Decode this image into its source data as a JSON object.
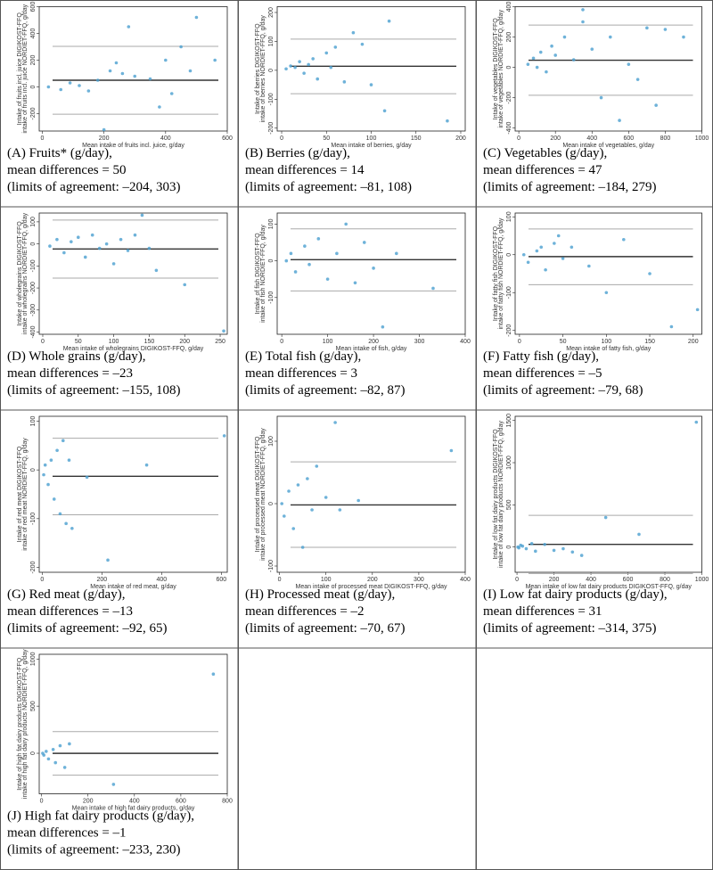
{
  "chart_data": [
    {
      "type": "scatter",
      "caption": [
        "(A) Fruits* (g/day),",
        "mean differences = 50",
        "(limits of agreement: –204, 303)"
      ],
      "x_label": "Mean intake of fruits incl. juice, g/day",
      "y_label": [
        "Intake of fruits incl. juice DIGIKOST-FFQ",
        "intake of fruits incl. juice NORDIET-FFQ, g/day"
      ],
      "xlim": [
        -10,
        600
      ],
      "ylim": [
        -330,
        600
      ],
      "xticks": [
        0,
        200,
        400,
        600
      ],
      "yticks": [
        -200,
        0,
        200,
        400,
        600
      ],
      "x": [
        20,
        60,
        90,
        120,
        150,
        180,
        200,
        220,
        240,
        260,
        280,
        300,
        350,
        380,
        400,
        420,
        450,
        480,
        500,
        560
      ],
      "y": [
        0,
        -20,
        30,
        10,
        -30,
        50,
        -320,
        120,
        180,
        100,
        450,
        80,
        60,
        -150,
        200,
        -50,
        300,
        120,
        520,
        200
      ],
      "mean": 50,
      "limits": [
        -204,
        303
      ],
      "color": "#4a9fd0"
    },
    {
      "type": "scatter",
      "caption": [
        "(B) Berries (g/day),",
        "mean differences = 14",
        "(limits of agreement: –81, 108)"
      ],
      "x_label": "Mean intake of berries, g/day",
      "y_label": [
        "Intake of berries DIGIKOST-FFQ",
        "intake of berries NORDIET-FFQ, g/day"
      ],
      "xlim": [
        -5,
        205
      ],
      "ylim": [
        -210,
        220
      ],
      "xticks": [
        0,
        50,
        100,
        150,
        200
      ],
      "yticks": [
        -200,
        -100,
        0,
        100,
        200
      ],
      "x": [
        5,
        10,
        15,
        20,
        25,
        30,
        35,
        40,
        50,
        55,
        60,
        70,
        80,
        90,
        100,
        115,
        120,
        185
      ],
      "y": [
        5,
        15,
        10,
        30,
        -10,
        20,
        40,
        -30,
        60,
        10,
        80,
        -40,
        130,
        90,
        -50,
        -140,
        170,
        -175
      ],
      "mean": 14,
      "limits": [
        -81,
        108
      ],
      "color": "#4a9fd0"
    },
    {
      "type": "scatter",
      "caption": [
        "(C) Vegetables (g/day),",
        "mean differences = 47",
        "(limits of agreement: –184, 279)"
      ],
      "x_label": "Mean intake of vegetables, g/day",
      "y_label": [
        "Intake of vegetables DIGIKOST-FFQ",
        "intake of vegetables NORDIET-FFQ, g/day"
      ],
      "xlim": [
        -20,
        1000
      ],
      "ylim": [
        -420,
        400
      ],
      "xticks": [
        0,
        200,
        400,
        600,
        800,
        1000
      ],
      "yticks": [
        -400,
        -200,
        0,
        200,
        400
      ],
      "x": [
        50,
        80,
        100,
        120,
        150,
        180,
        200,
        250,
        300,
        350,
        400,
        450,
        500,
        550,
        600,
        650,
        700,
        750,
        800,
        900,
        350
      ],
      "y": [
        20,
        60,
        0,
        100,
        -30,
        140,
        80,
        200,
        50,
        300,
        120,
        -200,
        200,
        -350,
        20,
        -80,
        260,
        -250,
        250,
        200,
        380
      ],
      "mean": 47,
      "limits": [
        -184,
        279
      ],
      "color": "#4a9fd0"
    },
    {
      "type": "scatter",
      "caption": [
        "(D) Whole grains (g/day),",
        "mean differences = –23",
        "(limits of agreement: –155, 108)"
      ],
      "x_label": "Mean intake of wholegrains DIGIKOST-FFQ, g/day",
      "y_label": [
        "Intake of wholegrains DIGIKOST-FFQ",
        "intake of wholegrains NORDIET-FFQ, g/day"
      ],
      "xlim": [
        -5,
        260
      ],
      "ylim": [
        -410,
        140
      ],
      "xticks": [
        0,
        50,
        100,
        150,
        200,
        250
      ],
      "yticks": [
        -400,
        -300,
        -200,
        -100,
        0,
        100
      ],
      "x": [
        10,
        20,
        30,
        40,
        50,
        60,
        70,
        80,
        90,
        100,
        110,
        120,
        130,
        140,
        150,
        160,
        200,
        255
      ],
      "y": [
        -10,
        20,
        -40,
        10,
        30,
        -60,
        40,
        -20,
        0,
        -90,
        20,
        -30,
        40,
        130,
        -20,
        -120,
        -185,
        -395
      ],
      "mean": -23,
      "limits": [
        -155,
        108
      ],
      "color": "#4a9fd0"
    },
    {
      "type": "scatter",
      "caption": [
        "(E) Total fish (g/day),",
        "mean differences = 3",
        "(limits of agreement: –82, 87)"
      ],
      "x_label": "Mean intake of fish, g/day",
      "y_label": [
        "Intake of fish DIGIKOST-FFQ",
        "intake of fish NORDIET-FFQ, g/day"
      ],
      "xlim": [
        -10,
        400
      ],
      "ylim": [
        -200,
        130
      ],
      "xticks": [
        0,
        100,
        200,
        300,
        400
      ],
      "yticks": [
        -100,
        0,
        100
      ],
      "x": [
        10,
        20,
        30,
        50,
        60,
        80,
        100,
        120,
        140,
        160,
        180,
        200,
        220,
        250,
        330
      ],
      "y": [
        0,
        20,
        -30,
        40,
        -10,
        60,
        -50,
        20,
        100,
        -60,
        50,
        -20,
        -180,
        20,
        -75
      ],
      "mean": 3,
      "limits": [
        -82,
        87
      ],
      "color": "#4a9fd0"
    },
    {
      "type": "scatter",
      "caption": [
        "(F) Fatty fish (g/day),",
        "mean differences = –5",
        "(limits of agreement: –79, 68)"
      ],
      "x_label": "Mean intake of fatty fish, g/day",
      "y_label": [
        "Intake of fatty fish DIGIKOST-FFQ",
        "intake of fatty fish NORDIET-FFQ, g/day"
      ],
      "xlim": [
        -5,
        210
      ],
      "ylim": [
        -210,
        110
      ],
      "xticks": [
        0,
        50,
        100,
        150,
        200
      ],
      "yticks": [
        -200,
        -100,
        0,
        100
      ],
      "x": [
        5,
        10,
        20,
        25,
        30,
        40,
        45,
        50,
        60,
        80,
        100,
        120,
        150,
        175,
        205
      ],
      "y": [
        0,
        -20,
        10,
        20,
        -40,
        30,
        50,
        -10,
        20,
        -30,
        -100,
        40,
        -50,
        -190,
        -145
      ],
      "mean": -5,
      "limits": [
        -79,
        68
      ],
      "color": "#4a9fd0"
    },
    {
      "type": "scatter",
      "caption": [
        "(G) Red meat (g/day),",
        "mean differences = –13",
        "(limits of agreement: –92, 65)"
      ],
      "x_label": "Mean intake of red meat, g/day",
      "y_label": [
        "Intake of red meat DIGIKOST-FFQ",
        "intake of red meat NORDIET-FFQ, g/day"
      ],
      "xlim": [
        -10,
        620
      ],
      "ylim": [
        -210,
        110
      ],
      "xticks": [
        0,
        200,
        400,
        600
      ],
      "yticks": [
        -200,
        -100,
        0,
        100
      ],
      "x": [
        5,
        10,
        20,
        30,
        40,
        50,
        60,
        70,
        80,
        90,
        100,
        150,
        220,
        350,
        610
      ],
      "y": [
        -10,
        10,
        -30,
        20,
        -60,
        40,
        -90,
        60,
        -110,
        20,
        -120,
        -15,
        -185,
        10,
        70
      ],
      "mean": -13,
      "limits": [
        -92,
        65
      ],
      "color": "#4a9fd0"
    },
    {
      "type": "scatter",
      "caption": [
        "(H) Processed meat (g/day),",
        "mean differences = –2",
        "(limits of agreement: –70, 67)"
      ],
      "x_label": "Mean intake of processed meat DIGIKOST-FFQ, g/day",
      "y_label": [
        "Intake of processed meat DIGIKOST-FFQ",
        "intake of processed meat NORDIET-FFQ, g/day"
      ],
      "xlim": [
        -5,
        400
      ],
      "ylim": [
        -110,
        140
      ],
      "xticks": [
        0,
        100,
        200,
        300,
        400
      ],
      "yticks": [
        -100,
        0,
        100
      ],
      "x": [
        5,
        10,
        20,
        30,
        40,
        50,
        60,
        70,
        80,
        100,
        120,
        130,
        170,
        370
      ],
      "y": [
        0,
        -20,
        20,
        -40,
        30,
        -70,
        40,
        -10,
        60,
        10,
        130,
        -10,
        5,
        85
      ],
      "mean": -2,
      "limits": [
        -70,
        67
      ],
      "color": "#4a9fd0"
    },
    {
      "type": "scatter",
      "caption": [
        "(I) Low fat dairy products (g/day),",
        "mean differences = 31",
        "(limits of agreement: –314, 375)"
      ],
      "x_label": "Mean intake of low fat dairy products DIGIKOST-FFQ, g/day",
      "y_label": [
        "Intake of low fat dairy products DIGIKOST-FFQ",
        "intake of low fat dairy products NORDIET-FFQ, g/day"
      ],
      "xlim": [
        -10,
        1000
      ],
      "ylim": [
        -300,
        1550
      ],
      "xticks": [
        0,
        200,
        400,
        600,
        800,
        1000
      ],
      "yticks": [
        0,
        500,
        1000,
        1500
      ],
      "x": [
        5,
        10,
        20,
        30,
        50,
        80,
        100,
        150,
        200,
        250,
        300,
        350,
        480,
        660,
        970
      ],
      "y": [
        0,
        -10,
        20,
        10,
        -20,
        40,
        -50,
        30,
        -40,
        -20,
        -60,
        -100,
        350,
        150,
        1480
      ],
      "mean": 31,
      "limits": [
        -314,
        375
      ],
      "color": "#4a9fd0"
    },
    {
      "type": "scatter",
      "caption": [
        "(J) High fat dairy products (g/day),",
        "mean differences = –1",
        "(limits of agreement: –233, 230)"
      ],
      "x_label": "Mean intake of high fat dairy products, g/day",
      "y_label": [
        "Intake of high fat dairy products DIGIKOST-FFQ",
        "intake of high fat dairy products NORDIET-FFQ, g/day"
      ],
      "xlim": [
        -10,
        800
      ],
      "ylim": [
        -430,
        1050
      ],
      "xticks": [
        0,
        200,
        400,
        600,
        800
      ],
      "yticks": [
        0,
        500,
        1000
      ],
      "x": [
        5,
        10,
        20,
        30,
        50,
        60,
        80,
        100,
        120,
        310,
        740
      ],
      "y": [
        0,
        -20,
        20,
        -60,
        40,
        -100,
        80,
        -150,
        100,
        -330,
        840
      ],
      "mean": -1,
      "limits": [
        -233,
        230
      ],
      "color": "#4a9fd0"
    }
  ]
}
